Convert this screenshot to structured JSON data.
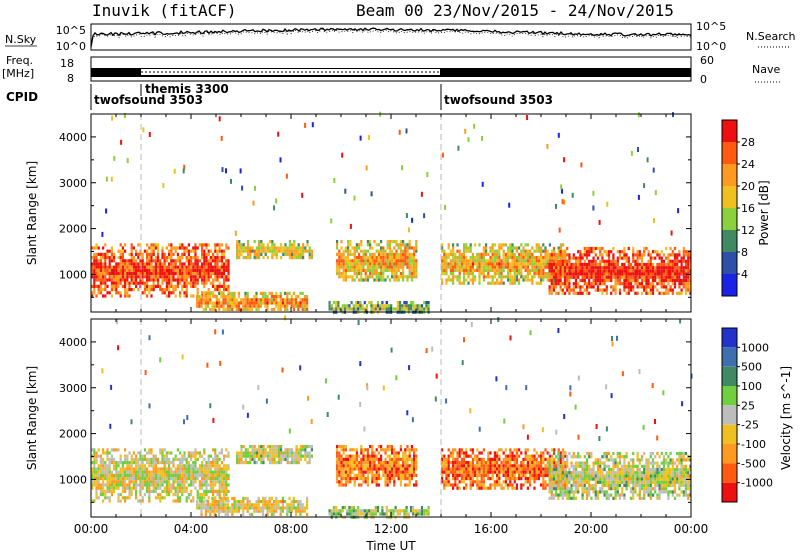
{
  "header": {
    "station": "Inuvik (fitACF)",
    "beam_date": "Beam 00  23/Nov/2015 - 24/Nov/2015"
  },
  "noise_panel": {
    "left_label": "N.Sky",
    "right_label": "N.Search",
    "ticks_left": [
      "10^5",
      "10^0"
    ],
    "ticks_right": [
      "10^5",
      "10^0"
    ]
  },
  "freq_panel": {
    "left_label_1": "Freq.",
    "left_label_2": "[MHz]",
    "ticks_left": [
      "18",
      "8"
    ],
    "right_label": "Nave",
    "ticks_right": [
      "60",
      "0"
    ]
  },
  "cpid_panel": {
    "label": "CPID",
    "entries": [
      {
        "name": "twofsound 3503",
        "start_hour": 0
      },
      {
        "name": "themis 3300",
        "start_hour": 2
      },
      {
        "name": "twofsound 3503",
        "start_hour": 14
      }
    ]
  },
  "chart_data": [
    {
      "type": "heatmap",
      "title": "",
      "xlabel": "",
      "ylabel": "Slant Range [km]",
      "colorbar_label": "Power [dB]",
      "x_ticks": [
        "00:00",
        "04:00",
        "08:00",
        "12:00",
        "16:00",
        "20:00",
        "00:00"
      ],
      "y_ticks": [
        1000,
        2000,
        3000,
        4000
      ],
      "ylim": [
        180,
        4500
      ],
      "xlim_hours": [
        0,
        24
      ],
      "colorbar_ticks": [
        4,
        8,
        12,
        16,
        20,
        24,
        28
      ],
      "colorbar_colors": [
        "#1a22e6",
        "#2e4fa8",
        "#3f8a63",
        "#8ad13d",
        "#f0c020",
        "#ff9a20",
        "#ff5a10",
        "#ee1010"
      ],
      "echo_regions": [
        {
          "t0": 0.0,
          "t1": 5.5,
          "r0": 560,
          "r1": 1680,
          "level": 0.82
        },
        {
          "t0": 4.2,
          "t1": 8.6,
          "r0": 220,
          "r1": 620,
          "level": 0.6
        },
        {
          "t0": 5.8,
          "t1": 8.8,
          "r0": 1350,
          "r1": 1750,
          "level": 0.45
        },
        {
          "t0": 9.8,
          "t1": 13.0,
          "r0": 850,
          "r1": 1750,
          "level": 0.55
        },
        {
          "t0": 14.0,
          "t1": 19.0,
          "r0": 820,
          "r1": 1680,
          "level": 0.55
        },
        {
          "t0": 18.3,
          "t1": 24.0,
          "r0": 560,
          "r1": 1600,
          "level": 0.85
        },
        {
          "t0": 9.5,
          "t1": 13.5,
          "r0": 200,
          "r1": 420,
          "level": 0.35
        }
      ]
    },
    {
      "type": "heatmap",
      "title": "",
      "xlabel": "Time UT",
      "ylabel": "Slant Range [km]",
      "colorbar_label": "Velocity [m s^-1]",
      "x_ticks": [
        "00:00",
        "04:00",
        "08:00",
        "12:00",
        "16:00",
        "20:00",
        "00:00"
      ],
      "y_ticks": [
        1000,
        2000,
        3000,
        4000
      ],
      "ylim": [
        180,
        4500
      ],
      "xlim_hours": [
        0,
        24
      ],
      "colorbar_ticks": [
        1000,
        500,
        100,
        25,
        -25,
        -100,
        -500,
        -1000
      ],
      "colorbar_colors": [
        "#2233cc",
        "#3f6fb0",
        "#3f8a63",
        "#6fcf3d",
        "#bdbdbd",
        "#f0c020",
        "#ff9a20",
        "#ff5a10",
        "#ee1010"
      ],
      "echo_regions": [
        {
          "t0": 0.0,
          "t1": 5.5,
          "r0": 560,
          "r1": 1680,
          "level": 0.55
        },
        {
          "t0": 4.2,
          "t1": 8.6,
          "r0": 220,
          "r1": 620,
          "level": 0.6
        },
        {
          "t0": 5.8,
          "t1": 8.8,
          "r0": 1350,
          "r1": 1750,
          "level": 0.5
        },
        {
          "t0": 9.8,
          "t1": 13.0,
          "r0": 850,
          "r1": 1750,
          "level": 0.8
        },
        {
          "t0": 14.0,
          "t1": 19.0,
          "r0": 820,
          "r1": 1680,
          "level": 0.85
        },
        {
          "t0": 18.3,
          "t1": 24.0,
          "r0": 560,
          "r1": 1600,
          "level": 0.5
        },
        {
          "t0": 9.5,
          "t1": 13.5,
          "r0": 200,
          "r1": 420,
          "level": 0.45
        }
      ]
    }
  ]
}
